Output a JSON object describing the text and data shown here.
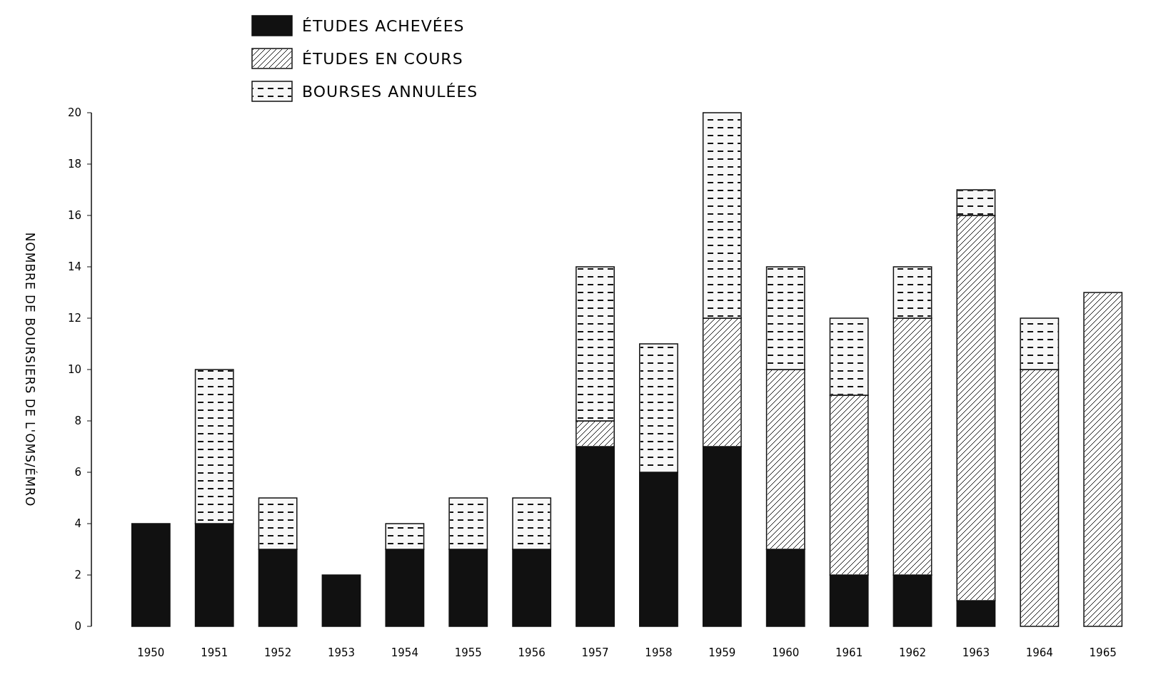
{
  "chart_data": {
    "type": "bar",
    "stacked": true,
    "ylabel": "NOMBRE DE BOURSIERS DE L'OMS/ÉMRO",
    "categories": [
      "1950",
      "1951",
      "1952",
      "1953",
      "1954",
      "1955",
      "1956",
      "1957",
      "1958",
      "1959",
      "1960",
      "1961",
      "1962",
      "1963",
      "1964",
      "1965"
    ],
    "series": [
      {
        "name": "ÉTUDES ACHEVÉES",
        "color": "#111111",
        "values": [
          4,
          4,
          3,
          2,
          3,
          3,
          3,
          7,
          6,
          7,
          3,
          2,
          2,
          1,
          0,
          0
        ]
      },
      {
        "name": "ÉTUDES EN COURS",
        "color": "#ffffff",
        "values": [
          0,
          0,
          0,
          0,
          0,
          0,
          0,
          1,
          0,
          5,
          7,
          7,
          10,
          15,
          10,
          13
        ]
      },
      {
        "name": "BOURSES ANNULÉES",
        "color": "#f7f7f7",
        "values": [
          0,
          6,
          2,
          0,
          1,
          2,
          2,
          6,
          5,
          8,
          4,
          3,
          2,
          1,
          2,
          0
        ]
      }
    ],
    "ylim": [
      0,
      20
    ],
    "yticks": [
      0,
      2,
      4,
      6,
      8,
      10,
      12,
      14,
      16,
      18,
      20
    ],
    "legend": "top left",
    "grid": false
  }
}
